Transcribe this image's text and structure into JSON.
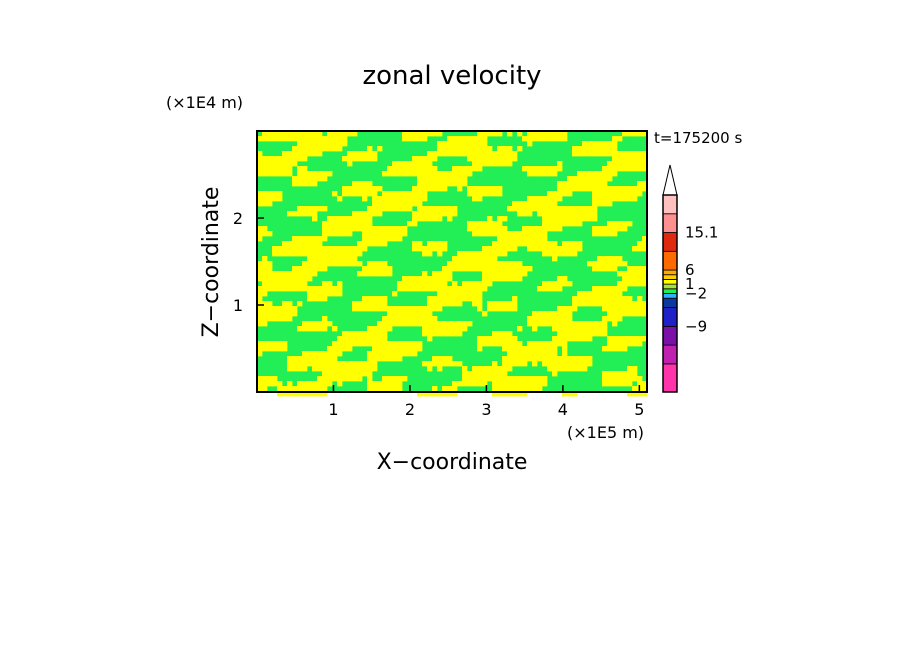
{
  "chart_data": {
    "type": "heatmap",
    "title": "zonal velocity",
    "xlabel": "X−coordinate",
    "ylabel": "Z−coordinate",
    "x_scale_label": "(×1E5 m)",
    "y_scale_label": "(×1E4 m)",
    "time_label": "t=175200 s",
    "xlim": [
      0,
      5.1
    ],
    "ylim": [
      0,
      3.0
    ],
    "x_ticks": [
      1,
      2,
      3,
      4,
      5
    ],
    "y_ticks": [
      1,
      2
    ],
    "grid": false,
    "field_colors": {
      "yellow": "#ffff00",
      "green": "#22ee55"
    },
    "colorbar": {
      "labels": [
        {
          "text": "15.1",
          "value": 15.1
        },
        {
          "text": "6",
          "value": 6
        },
        {
          "text": "1",
          "value": 1
        },
        {
          "text": "−2",
          "value": -2
        },
        {
          "text": "−9",
          "value": -9
        }
      ],
      "segments": [
        {
          "color": "#ff33aa",
          "weight": 3
        },
        {
          "color": "#c020b0",
          "weight": 2
        },
        {
          "color": "#7a10a8",
          "weight": 2
        },
        {
          "color": "#2020c8",
          "weight": 2
        },
        {
          "color": "#0a3aa0",
          "weight": 1
        },
        {
          "color": "#30b0ff",
          "weight": 0.5
        },
        {
          "color": "#22ee55",
          "weight": 0.5
        },
        {
          "color": "#a8e040",
          "weight": 0.5
        },
        {
          "color": "#ffff00",
          "weight": 0.5
        },
        {
          "color": "#ffd000",
          "weight": 0.5
        },
        {
          "color": "#ffaa00",
          "weight": 0.5
        },
        {
          "color": "#ff6a00",
          "weight": 2
        },
        {
          "color": "#e02a10",
          "weight": 2
        },
        {
          "color": "#ff9090",
          "weight": 2
        },
        {
          "color": "#ffc0c0",
          "weight": 2
        }
      ],
      "top_arrow_color": "#ffffff"
    }
  }
}
